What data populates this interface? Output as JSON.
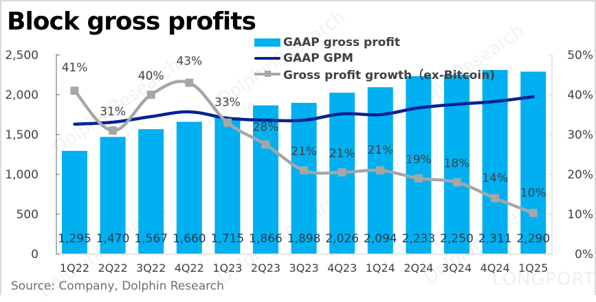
{
  "title": "Block gross profits",
  "source": "Source: Company, Dolphin Research",
  "watermarks": [
    "DolphinResearch",
    "LONGPORT"
  ],
  "legend": [
    {
      "label": "GAAP gross profit",
      "type": "bar"
    },
    {
      "label": "GAAP GPM",
      "type": "line"
    },
    {
      "label": "Gross profit growth（ex-Bitcoin)",
      "type": "line-marker"
    }
  ],
  "colors": {
    "bar": "#00b0f0",
    "gpm": "#002392",
    "growth": "#a6a6a6",
    "axis": "#808080",
    "text": "#404040"
  },
  "chart_data": {
    "type": "bar",
    "title": "Block gross profits",
    "categories": [
      "1Q22",
      "2Q22",
      "3Q22",
      "4Q22",
      "1Q23",
      "2Q23",
      "3Q23",
      "4Q23",
      "1Q24",
      "2Q24",
      "3Q24",
      "4Q24",
      "1Q25"
    ],
    "series": [
      {
        "name": "GAAP gross profit",
        "type": "bar",
        "axis": "left",
        "values": [
          1295,
          1470,
          1567,
          1660,
          1715,
          1866,
          1898,
          2026,
          2094,
          2233,
          2250,
          2311,
          2290
        ],
        "labels": [
          "1,295",
          "1,470",
          "1,567",
          "1,660",
          "1,715",
          "1,866",
          "1,898",
          "2,026",
          "2,094",
          "2,233",
          "2,250",
          "2,311",
          "2,290"
        ]
      },
      {
        "name": "GAAP GPM",
        "type": "line",
        "axis": "right",
        "values": [
          32.6,
          33.1,
          34.5,
          35.7,
          34.1,
          33.6,
          33.6,
          35.2,
          35.0,
          36.7,
          37.6,
          38.3,
          39.5
        ]
      },
      {
        "name": "Gross profit growth（ex-Bitcoin)",
        "type": "line",
        "axis": "right",
        "values": [
          41,
          31,
          40,
          43,
          33,
          27.5,
          21,
          20.5,
          21,
          19,
          18,
          14,
          10.3
        ],
        "labels": [
          "41%",
          "31%",
          "40%",
          "43%",
          "33%",
          "28%",
          "21%",
          "21%",
          "21%",
          "19%",
          "18%",
          "14%",
          "10%"
        ]
      }
    ],
    "y_left": {
      "ylim": [
        0,
        2500
      ],
      "ticks": [
        0,
        500,
        1000,
        1500,
        2000,
        2500
      ],
      "tick_labels": [
        "0",
        "500",
        "1,000",
        "1,500",
        "2,000",
        "2,500"
      ]
    },
    "y_right": {
      "ylim": [
        0,
        50
      ],
      "ticks": [
        0,
        10,
        20,
        30,
        40,
        50
      ],
      "tick_labels": [
        "0%",
        "10%",
        "20%",
        "30%",
        "40%",
        "50%"
      ]
    },
    "xlabel": "",
    "ylabel": "",
    "grid": false,
    "legend_position": "top-center"
  }
}
